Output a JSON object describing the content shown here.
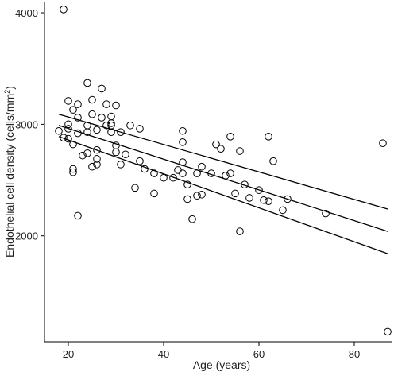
{
  "chart_data": {
    "type": "scatter",
    "xlabel": "Age (years)",
    "ylabel_main": "Endothelial cell density (cells/mm",
    "ylabel_sup": "2",
    "ylabel_end": ")",
    "xlim": [
      15,
      88
    ],
    "ylim": [
      1050,
      4100
    ],
    "xticks": [
      20,
      40,
      60,
      80
    ],
    "yticks": [
      2000,
      3000,
      4000
    ],
    "grid": false,
    "points": [
      [
        19,
        4030
      ],
      [
        18,
        2940
      ],
      [
        19,
        2880
      ],
      [
        20,
        2960
      ],
      [
        20,
        3000
      ],
      [
        20,
        3210
      ],
      [
        20,
        2870
      ],
      [
        21,
        3130
      ],
      [
        21,
        2820
      ],
      [
        21,
        2600
      ],
      [
        21,
        2570
      ],
      [
        22,
        3180
      ],
      [
        22,
        3060
      ],
      [
        22,
        2920
      ],
      [
        22,
        2180
      ],
      [
        23,
        2720
      ],
      [
        24,
        3370
      ],
      [
        24,
        2990
      ],
      [
        24,
        2930
      ],
      [
        24,
        2740
      ],
      [
        25,
        3220
      ],
      [
        25,
        3090
      ],
      [
        25,
        2620
      ],
      [
        26,
        2950
      ],
      [
        26,
        2770
      ],
      [
        26,
        2690
      ],
      [
        26,
        2640
      ],
      [
        27,
        3320
      ],
      [
        27,
        3060
      ],
      [
        28,
        3180
      ],
      [
        28,
        2990
      ],
      [
        29,
        3070
      ],
      [
        29,
        3010
      ],
      [
        29,
        2990
      ],
      [
        29,
        2930
      ],
      [
        30,
        3170
      ],
      [
        30,
        2810
      ],
      [
        30,
        2750
      ],
      [
        31,
        2930
      ],
      [
        31,
        2640
      ],
      [
        32,
        2730
      ],
      [
        33,
        2990
      ],
      [
        34,
        2430
      ],
      [
        35,
        2960
      ],
      [
        35,
        2670
      ],
      [
        36,
        2600
      ],
      [
        38,
        2560
      ],
      [
        38,
        2380
      ],
      [
        40,
        2520
      ],
      [
        42,
        2520
      ],
      [
        43,
        2590
      ],
      [
        44,
        2940
      ],
      [
        44,
        2840
      ],
      [
        44,
        2660
      ],
      [
        44,
        2560
      ],
      [
        45,
        2460
      ],
      [
        45,
        2330
      ],
      [
        46,
        2150
      ],
      [
        47,
        2560
      ],
      [
        47,
        2360
      ],
      [
        48,
        2620
      ],
      [
        48,
        2370
      ],
      [
        50,
        2560
      ],
      [
        51,
        2820
      ],
      [
        52,
        2780
      ],
      [
        53,
        2540
      ],
      [
        54,
        2890
      ],
      [
        54,
        2560
      ],
      [
        55,
        2380
      ],
      [
        56,
        2760
      ],
      [
        56,
        2040
      ],
      [
        57,
        2460
      ],
      [
        58,
        2340
      ],
      [
        60,
        2410
      ],
      [
        61,
        2320
      ],
      [
        62,
        2890
      ],
      [
        62,
        2310
      ],
      [
        63,
        2670
      ],
      [
        65,
        2230
      ],
      [
        66,
        2330
      ],
      [
        74,
        2200
      ],
      [
        86,
        2830
      ],
      [
        87,
        1140
      ]
    ],
    "regression": {
      "x": [
        18,
        87
      ],
      "upper": [
        3090,
        2240
      ],
      "fit": [
        2990,
        2040
      ],
      "lower": [
        2890,
        1840
      ]
    }
  }
}
